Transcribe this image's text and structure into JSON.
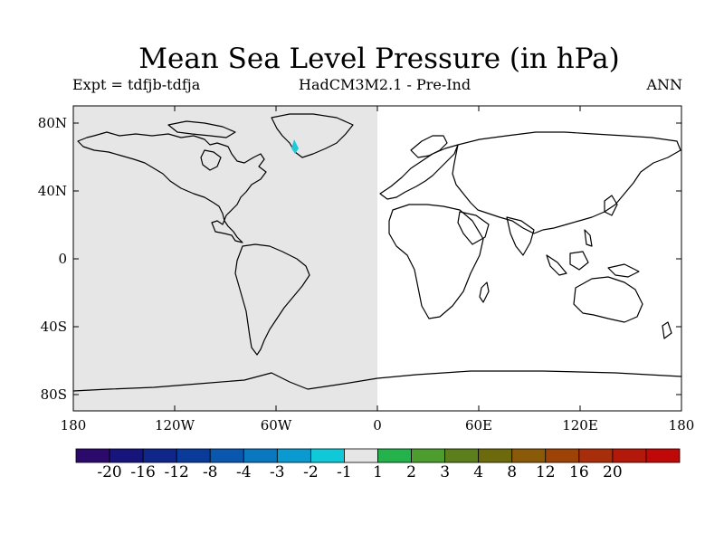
{
  "title": "Mean Sea Level Pressure (in hPa)",
  "subtitle_left": "Expt = tdfjb-tdfja",
  "subtitle_center": "HadCM3M2.1 - Pre-Ind",
  "subtitle_right": "ANN",
  "lat_labels": [
    "80N",
    "40N",
    "0",
    "40S",
    "80S"
  ],
  "lon_labels": [
    "180",
    "120W",
    "60W",
    "0",
    "60E",
    "120E",
    "180"
  ],
  "fields": {
    "western_hemisphere": {
      "range_lon": [
        -180,
        0
      ],
      "color": "#e6e6e6",
      "value_bin": "-1 to 1"
    },
    "eastern_hemisphere": {
      "range_lon": [
        0,
        180
      ],
      "color": "#ffffff",
      "value_bin": "-1 to 1"
    },
    "greenland_anomaly": {
      "lon": -50,
      "lat": 66,
      "color": "#22c8d8",
      "value_bin": "-2 to -1"
    }
  },
  "colorbar": {
    "colors": [
      "#2b0a6b",
      "#17157c",
      "#0f268a",
      "#0a3a9a",
      "#0a57b0",
      "#0a78c0",
      "#0a9ad0",
      "#0fc8d8",
      "#e6e6e6",
      "#23b24b",
      "#4c9c2e",
      "#5c7f1c",
      "#6c6a0c",
      "#8a5a08",
      "#9e4308",
      "#a82d0a",
      "#b4180a",
      "#c00808"
    ],
    "labels": [
      "-20",
      "-16",
      "-12",
      "-8",
      "-4",
      "-3",
      "-2",
      "-1",
      "1",
      "2",
      "3",
      "4",
      "8",
      "12",
      "16",
      "20"
    ]
  }
}
